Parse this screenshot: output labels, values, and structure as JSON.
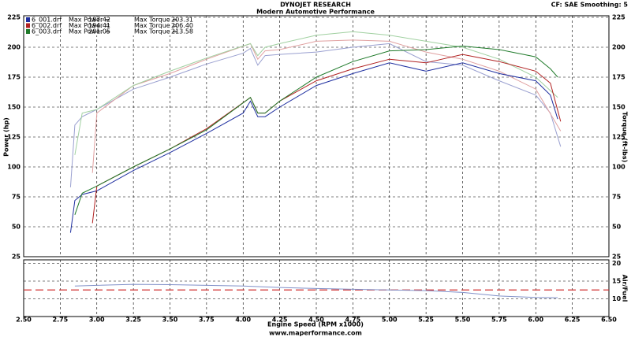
{
  "chart_data": [
    {
      "type": "line",
      "title": "DYNOJET RESEARCH",
      "subtitle": "Modern Automotive Performance",
      "corner_note": "CF: SAE  Smoothing: 5",
      "ylabel": "Power (hp)",
      "y2label": "Torque (ft-lbs)",
      "xlabel": "Engine Speed (RPM x1000)",
      "footer": "www.maperformance.com",
      "legend_power_label": "Max Power =",
      "legend_torque_label": "Max Torque =",
      "legend": [
        {
          "name": "6_001.drf",
          "color": "#1f2fa0",
          "max_power": {
            "value": 187.42,
            "label": "187.42"
          },
          "max_torque": {
            "value": 203.31,
            "label": "203.31"
          }
        },
        {
          "name": "6_002.drf",
          "color": "#b02020",
          "max_power": {
            "value": 194.41,
            "label": "194.41"
          },
          "max_torque": {
            "value": 206.4,
            "label": "206.40"
          }
        },
        {
          "name": "6_003.drf",
          "color": "#1f7a2a",
          "max_power": {
            "value": 201.05,
            "label": "201.05"
          },
          "max_torque": {
            "value": 213.58,
            "label": "213.58"
          }
        }
      ],
      "xlim": [
        2.5,
        6.5
      ],
      "xticks": [
        {
          "value": 2.5,
          "label": "2.50"
        },
        {
          "value": 2.75,
          "label": "2.75"
        },
        {
          "value": 3,
          "label": "3.00"
        },
        {
          "value": 3.25,
          "label": "3.25"
        },
        {
          "value": 3.5,
          "label": "3.50"
        },
        {
          "value": 3.75,
          "label": "3.75"
        },
        {
          "value": 4,
          "label": "4.00"
        },
        {
          "value": 4.25,
          "label": "4.25"
        },
        {
          "value": 4.5,
          "label": "4.50"
        },
        {
          "value": 4.75,
          "label": "4.75"
        },
        {
          "value": 5,
          "label": "5.00"
        },
        {
          "value": 5.25,
          "label": "5.25"
        },
        {
          "value": 5.5,
          "label": "5.50"
        },
        {
          "value": 5.75,
          "label": "5.75"
        },
        {
          "value": 6,
          "label": "6.00"
        },
        {
          "value": 6.25,
          "label": "6.25"
        },
        {
          "value": 6.5,
          "label": "6.50"
        }
      ],
      "ylim": [
        25,
        225
      ],
      "yticks": [
        25,
        50,
        75,
        100,
        125,
        150,
        175,
        200,
        225
      ],
      "y2lim": [
        25,
        225
      ],
      "y2ticks": [
        25,
        50,
        75,
        100,
        125,
        150,
        175,
        200,
        225
      ],
      "grid": true,
      "series": [
        {
          "color": "#1f2fa0",
          "x": [
            2.82,
            2.85,
            2.9,
            3.0,
            3.25,
            3.5,
            3.75,
            4.0,
            4.05,
            4.1,
            4.15,
            4.25,
            4.5,
            4.75,
            5.0,
            5.25,
            5.5,
            5.75,
            6.0,
            6.1,
            6.15
          ],
          "values": [
            45,
            72,
            77,
            80,
            97,
            112,
            128,
            145,
            155,
            142,
            142,
            150,
            168,
            178,
            187,
            180,
            187,
            178,
            172,
            160,
            140
          ]
        },
        {
          "color": "#b02020",
          "x": [
            2.97,
            3.0,
            3.25,
            3.5,
            3.75,
            4.05,
            4.1,
            4.15,
            4.25,
            4.5,
            4.75,
            5.0,
            5.25,
            5.5,
            5.75,
            6.0,
            6.1,
            6.17
          ],
          "values": [
            53,
            84,
            100,
            115,
            132,
            158,
            145,
            145,
            155,
            172,
            182,
            190,
            187,
            194,
            188,
            180,
            170,
            138
          ]
        },
        {
          "color": "#1f7a2a",
          "x": [
            2.85,
            2.9,
            3.0,
            3.25,
            3.5,
            3.75,
            4.05,
            4.1,
            4.15,
            4.25,
            4.5,
            4.75,
            5.0,
            5.25,
            5.5,
            5.75,
            6.0,
            6.1,
            6.15
          ],
          "values": [
            60,
            78,
            84,
            100,
            115,
            131,
            158,
            145,
            145,
            155,
            175,
            188,
            197,
            198,
            201,
            198,
            192,
            182,
            175
          ]
        },
        {
          "color": "#9aa0d0",
          "axis": "y2",
          "x": [
            2.82,
            2.85,
            2.9,
            3.0,
            3.25,
            3.5,
            3.75,
            4.0,
            4.05,
            4.1,
            4.15,
            4.25,
            4.5,
            4.75,
            5.0,
            5.25,
            5.5,
            5.75,
            6.0,
            6.1,
            6.17
          ],
          "values": [
            83,
            135,
            142,
            148,
            165,
            175,
            186,
            195,
            199,
            185,
            193,
            194,
            196,
            200,
            203,
            188,
            185,
            172,
            160,
            145,
            117
          ]
        },
        {
          "color": "#e0a0a0",
          "axis": "y2",
          "x": [
            2.97,
            3.0,
            3.25,
            3.5,
            3.75,
            4.05,
            4.1,
            4.15,
            4.25,
            4.5,
            4.75,
            5.0,
            5.25,
            5.5,
            5.75,
            6.0,
            6.17
          ],
          "values": [
            95,
            145,
            168,
            178,
            190,
            203,
            190,
            197,
            198,
            205,
            206,
            205,
            196,
            190,
            180,
            165,
            130
          ]
        },
        {
          "color": "#a0d0a0",
          "axis": "y2",
          "x": [
            2.85,
            2.9,
            3.0,
            3.25,
            3.5,
            3.75,
            4.05,
            4.1,
            4.15,
            4.25,
            4.5,
            4.75,
            5.0,
            5.25,
            5.5,
            5.75,
            6.0,
            6.15
          ],
          "values": [
            110,
            145,
            148,
            168,
            180,
            191,
            203,
            193,
            200,
            203,
            210,
            213,
            210,
            205,
            200,
            190,
            175,
            158
          ]
        }
      ]
    },
    {
      "type": "line",
      "ylabel": "Air/Fuel",
      "ylim": [
        5,
        21
      ],
      "yticks": [
        10,
        15,
        20
      ],
      "reference_line": 12.5,
      "reference_color": "#d03030",
      "series": [
        {
          "color": "#8090c8",
          "x": [
            2.85,
            3.0,
            3.25,
            3.5,
            3.75,
            4.0,
            4.25,
            4.5,
            4.75,
            5.0,
            5.25,
            5.5,
            5.75,
            6.0,
            6.15
          ],
          "values": [
            13.6,
            13.8,
            14.1,
            14,
            13.8,
            13.6,
            13.2,
            12.9,
            12.7,
            12.5,
            12.3,
            11.8,
            10.8,
            10.4,
            10.3
          ]
        }
      ]
    }
  ]
}
